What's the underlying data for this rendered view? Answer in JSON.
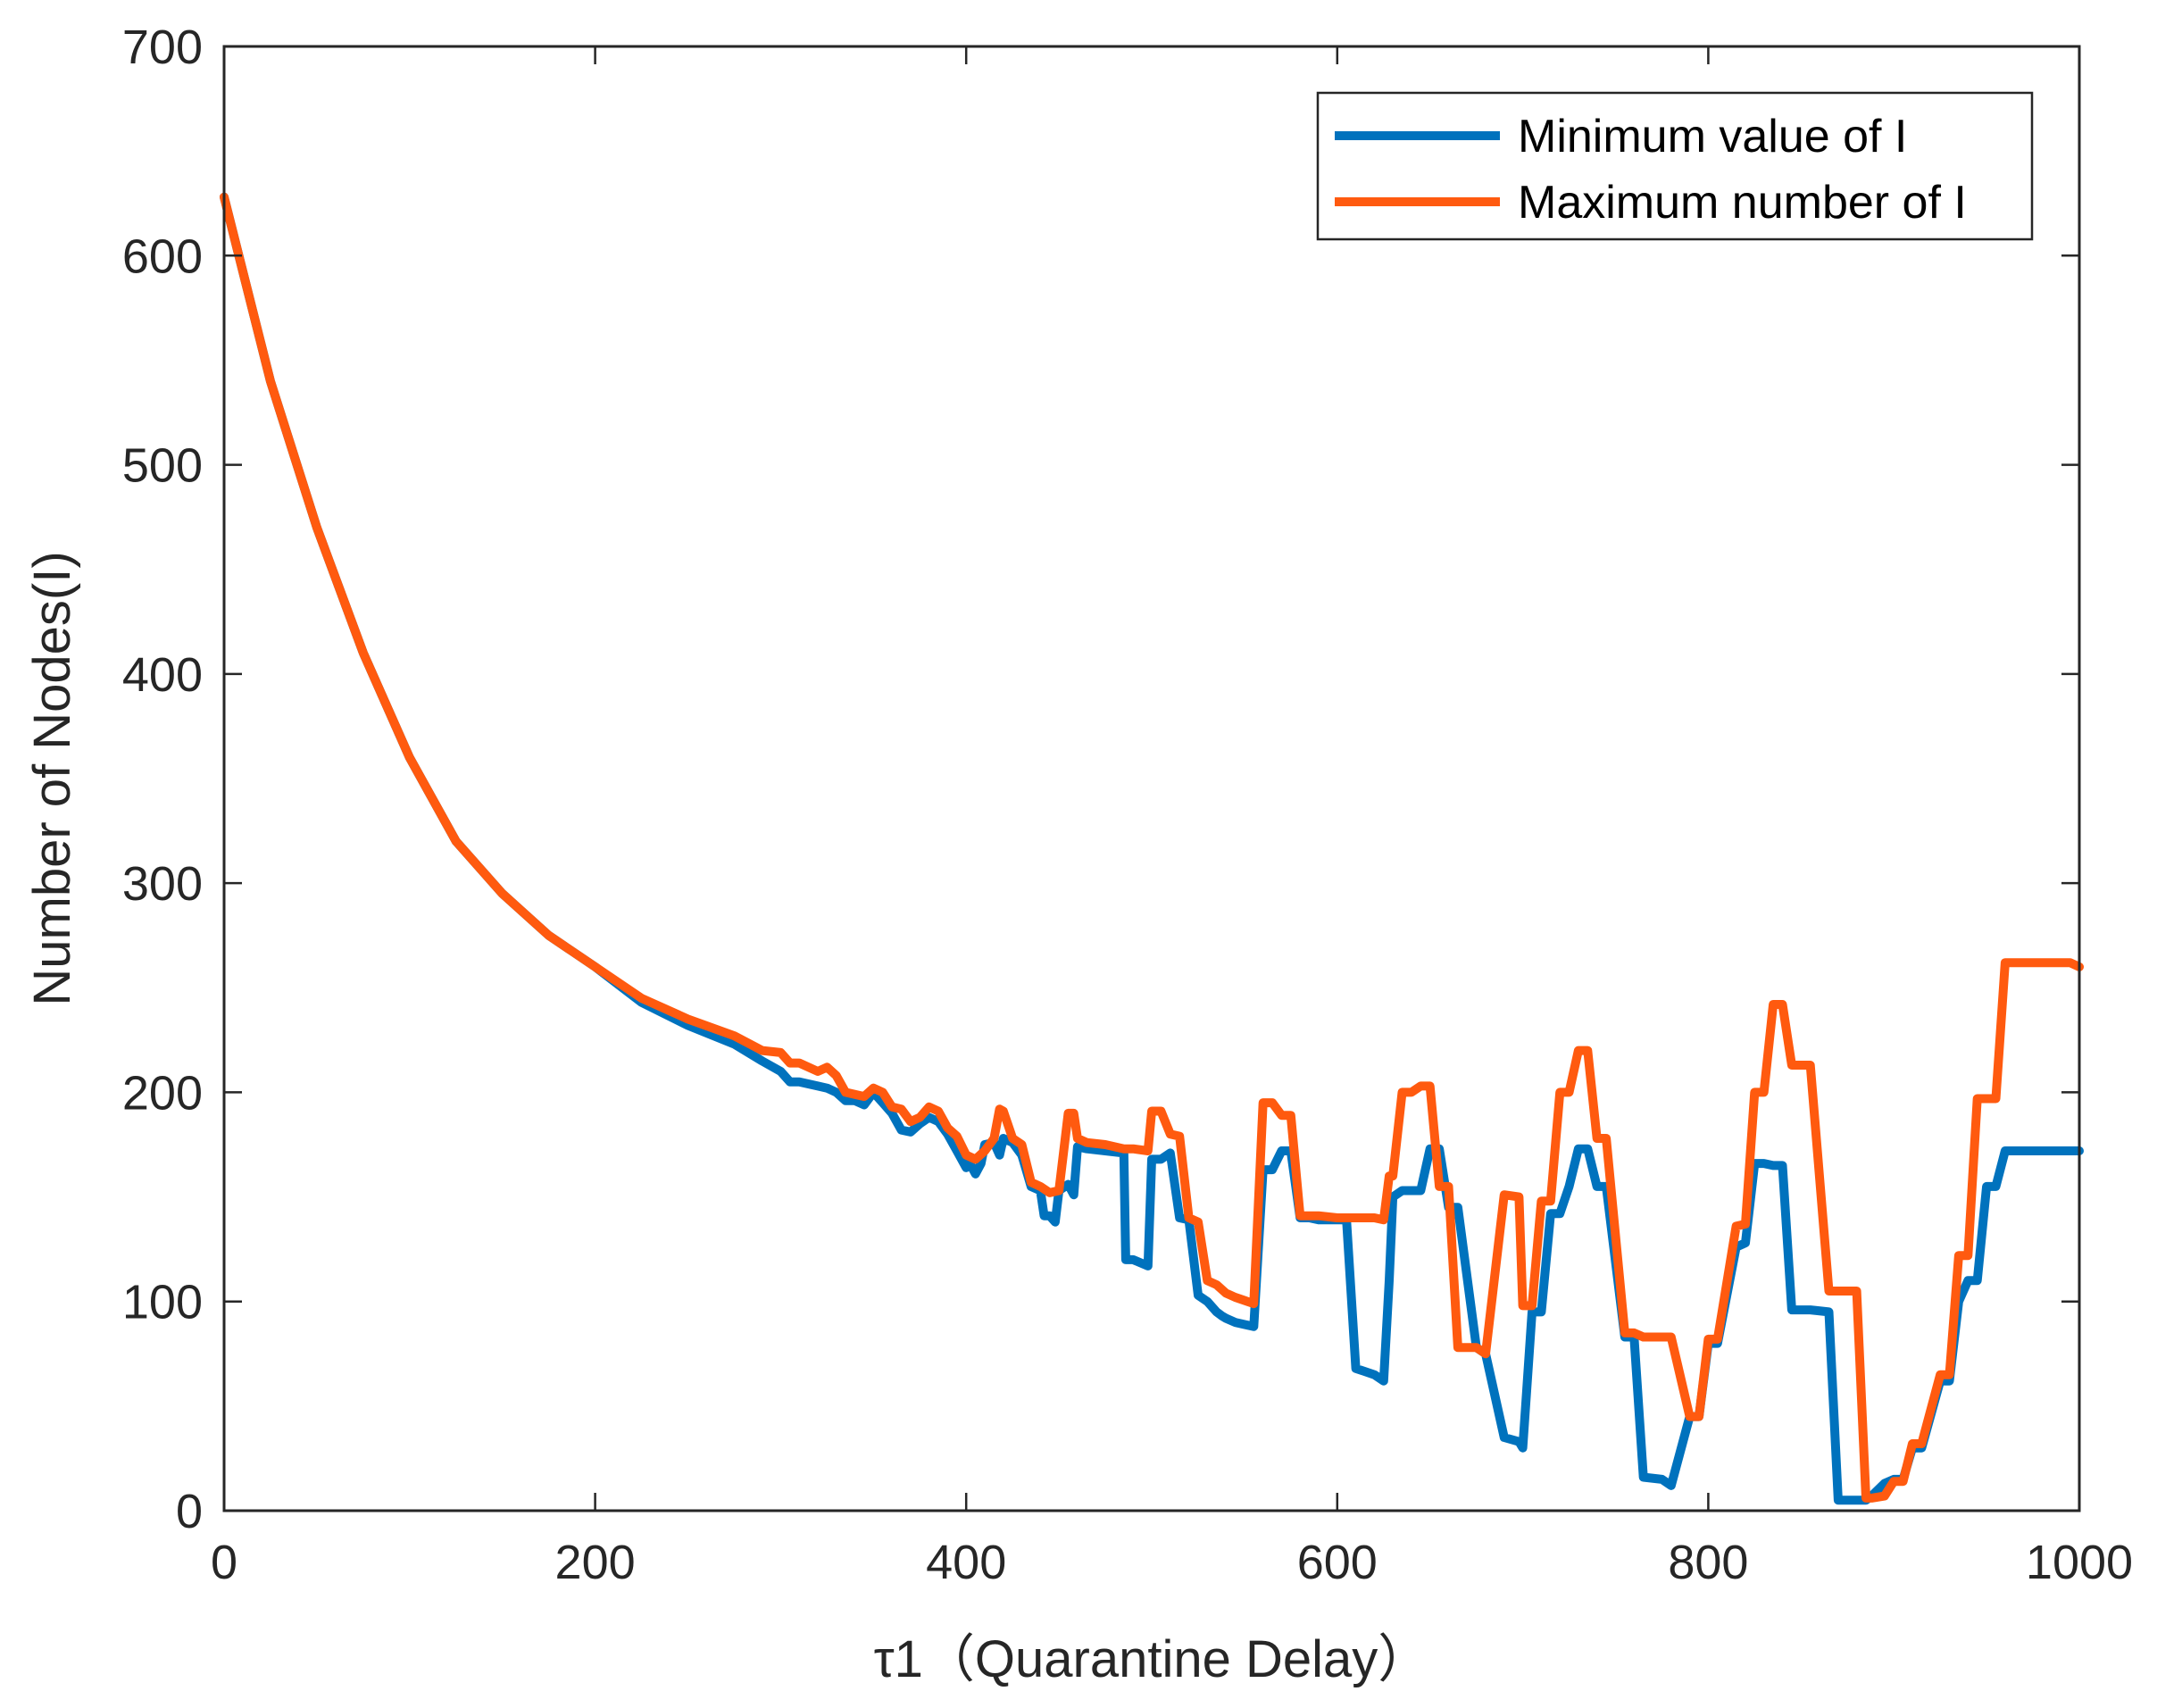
{
  "chart_data": {
    "type": "line",
    "title": "",
    "xlabel": "τ1（Quarantine Delay）",
    "ylabel": "Number of Nodes(I)",
    "xlim": [
      0,
      1000
    ],
    "ylim": [
      0,
      700
    ],
    "xticks": [
      0,
      200,
      400,
      600,
      800,
      1000
    ],
    "yticks": [
      0,
      100,
      200,
      300,
      400,
      500,
      600,
      700
    ],
    "xtick_labels": [
      "0",
      "200",
      "400",
      "600",
      "800",
      "1000"
    ],
    "ytick_labels": [
      "0",
      "100",
      "200",
      "300",
      "400",
      "500",
      "600",
      "700"
    ],
    "grid": false,
    "legend_position": "top-right",
    "series": [
      {
        "name": "Minimum value of I",
        "color": "#0072BD",
        "x": [
          0,
          25,
          50,
          75,
          100,
          125,
          150,
          175,
          200,
          225,
          250,
          275,
          290,
          300,
          305,
          310,
          320,
          325,
          330,
          335,
          340,
          345,
          350,
          355,
          360,
          365,
          370,
          375,
          380,
          385,
          390,
          395,
          400,
          402,
          405,
          408,
          410,
          415,
          418,
          420,
          425,
          430,
          435,
          440,
          442,
          445,
          448,
          450,
          455,
          458,
          460,
          465,
          475,
          485,
          486,
          490,
          498,
          500,
          505,
          510,
          515,
          520,
          525,
          530,
          535,
          538,
          540,
          545,
          555,
          560,
          565,
          570,
          575,
          580,
          585,
          590,
          605,
          610,
          620,
          625,
          628,
          630,
          635,
          645,
          650,
          655,
          660,
          665,
          675,
          680,
          690,
          698,
          700,
          705,
          710,
          715,
          720,
          725,
          730,
          735,
          740,
          745,
          755,
          760,
          765,
          775,
          780,
          790,
          795,
          800,
          805,
          815,
          820,
          825,
          830,
          835,
          840,
          845,
          855,
          865,
          870,
          880,
          885,
          888,
          895,
          900,
          905,
          910,
          915,
          925,
          930,
          935,
          940,
          945,
          950,
          955,
          960,
          965,
          970,
          975,
          985,
          990,
          995,
          1000
        ],
        "values": [
          628,
          540,
          470,
          410,
          360,
          320,
          295,
          275,
          260,
          243,
          232,
          223,
          215,
          210,
          205,
          205,
          203,
          202,
          200,
          196,
          196,
          194,
          200,
          195,
          190,
          182,
          181,
          185,
          188,
          186,
          180,
          172,
          164,
          166,
          161,
          166,
          175,
          176,
          170,
          178,
          176,
          170,
          155,
          153,
          141,
          141,
          138,
          153,
          156,
          151,
          174,
          173,
          172,
          171,
          120,
          120,
          117,
          168,
          168,
          171,
          140,
          139,
          103,
          100,
          95,
          93,
          92,
          90,
          88,
          163,
          163,
          172,
          172,
          140,
          140,
          139,
          139,
          68,
          65,
          62,
          110,
          150,
          153,
          153,
          173,
          173,
          145,
          145,
          78,
          75,
          35,
          33,
          30,
          95,
          95,
          142,
          142,
          155,
          173,
          173,
          155,
          155,
          83,
          83,
          16,
          15,
          12,
          45,
          45,
          80,
          80,
          126,
          128,
          166,
          166,
          165,
          165,
          96,
          96,
          95,
          5,
          5,
          5,
          7,
          13,
          15,
          15,
          30,
          30,
          62,
          62,
          100,
          110,
          110,
          155,
          155,
          172,
          172,
          172,
          172,
          172,
          172,
          172,
          172
        ]
      },
      {
        "name": "Maximum number of I",
        "color": "#FF5A0F",
        "x": [
          0,
          25,
          50,
          75,
          100,
          125,
          150,
          175,
          200,
          225,
          250,
          275,
          290,
          300,
          305,
          310,
          320,
          325,
          330,
          335,
          340,
          345,
          350,
          355,
          360,
          365,
          370,
          375,
          380,
          385,
          390,
          395,
          400,
          405,
          410,
          415,
          418,
          420,
          425,
          430,
          435,
          440,
          445,
          450,
          455,
          458,
          460,
          465,
          475,
          485,
          490,
          498,
          500,
          505,
          510,
          515,
          520,
          525,
          530,
          535,
          540,
          545,
          555,
          560,
          565,
          570,
          575,
          580,
          585,
          590,
          600,
          620,
          625,
          628,
          630,
          635,
          640,
          645,
          650,
          655,
          660,
          665,
          675,
          680,
          690,
          698,
          700,
          705,
          710,
          715,
          720,
          725,
          730,
          735,
          740,
          745,
          755,
          760,
          765,
          775,
          780,
          790,
          795,
          800,
          805,
          815,
          820,
          825,
          830,
          835,
          840,
          845,
          855,
          865,
          870,
          880,
          885,
          888,
          895,
          900,
          905,
          910,
          915,
          925,
          930,
          935,
          940,
          945,
          950,
          955,
          960,
          965,
          970,
          975,
          985,
          990,
          995,
          1000
        ],
        "values": [
          628,
          540,
          470,
          410,
          360,
          320,
          295,
          275,
          260,
          245,
          235,
          227,
          220,
          219,
          214,
          214,
          210,
          212,
          208,
          200,
          199,
          198,
          202,
          200,
          193,
          192,
          186,
          188,
          193,
          191,
          183,
          179,
          170,
          168,
          172,
          178,
          192,
          191,
          178,
          175,
          157,
          155,
          152,
          153,
          190,
          190,
          178,
          176,
          175,
          173,
          173,
          172,
          191,
          191,
          180,
          179,
          140,
          138,
          110,
          108,
          104,
          102,
          99,
          195,
          195,
          189,
          189,
          141,
          141,
          141,
          140,
          140,
          139,
          160,
          160,
          200,
          200,
          203,
          203,
          155,
          155,
          78,
          78,
          75,
          151,
          150,
          98,
          98,
          148,
          148,
          200,
          200,
          220,
          220,
          178,
          178,
          85,
          85,
          83,
          83,
          83,
          45,
          45,
          82,
          82,
          136,
          137,
          200,
          200,
          242,
          242,
          213,
          213,
          105,
          105,
          105,
          6,
          6,
          7,
          14,
          14,
          32,
          32,
          65,
          65,
          122,
          122,
          197,
          197,
          197,
          262,
          262,
          262,
          262,
          262,
          262,
          262,
          260
        ]
      }
    ]
  }
}
